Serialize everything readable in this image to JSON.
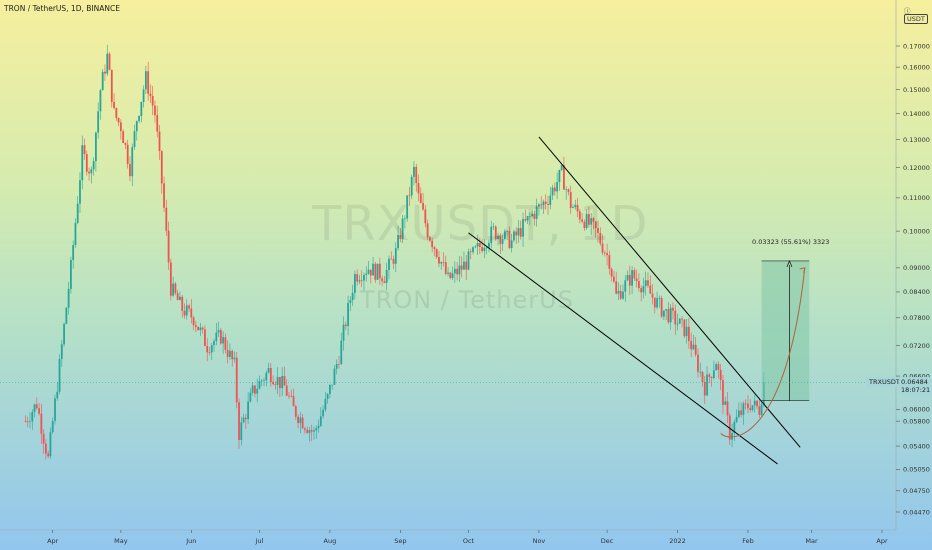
{
  "header": {
    "title": "TRON / TetherUS, 1D, BINANCE"
  },
  "watermark": {
    "symbol": "TRXUSDT, 1D",
    "name": "TRON / TetherUS"
  },
  "currency_label": "USDT",
  "measure_label": "0.03323 (55.61%) 3323",
  "last_price": {
    "symbol": "TRXUSDT",
    "value": "0.06484",
    "countdown": "18:07:21"
  },
  "chart_data": {
    "type": "candlestick",
    "title": "TRON / TetherUS, 1D, BINANCE",
    "y_scale": "log",
    "ylim": [
      0.0435,
      0.186
    ],
    "x_tick_labels": [
      "Apr",
      "May",
      "Jun",
      "Jul",
      "Aug",
      "Sep",
      "Oct",
      "Nov",
      "Dec",
      "2022",
      "Feb",
      "Mar",
      "Apr"
    ],
    "y_tick_labels": [
      "0.17000",
      "0.16000",
      "0.15000",
      "0.14000",
      "0.13000",
      "0.12000",
      "0.11000",
      "0.10000",
      "0.09000",
      "0.08400",
      "0.07800",
      "0.07200",
      "0.06600",
      "0.06000",
      "0.05800",
      "0.05400",
      "0.05050",
      "0.04750",
      "0.04470"
    ],
    "price_path": [
      [
        "2021-03-20",
        0.058
      ],
      [
        "2021-03-25",
        0.061
      ],
      [
        "2021-03-30",
        0.052
      ],
      [
        "2021-04-04",
        0.068
      ],
      [
        "2021-04-09",
        0.09
      ],
      [
        "2021-04-14",
        0.125
      ],
      [
        "2021-04-18",
        0.118
      ],
      [
        "2021-04-22",
        0.15
      ],
      [
        "2021-04-25",
        0.165
      ],
      [
        "2021-04-28",
        0.14
      ],
      [
        "2021-05-01",
        0.135
      ],
      [
        "2021-05-05",
        0.12
      ],
      [
        "2021-05-08",
        0.138
      ],
      [
        "2021-05-12",
        0.155
      ],
      [
        "2021-05-16",
        0.14
      ],
      [
        "2021-05-19",
        0.115
      ],
      [
        "2021-05-23",
        0.085
      ],
      [
        "2021-05-28",
        0.08
      ],
      [
        "2021-06-02",
        0.078
      ],
      [
        "2021-06-08",
        0.072
      ],
      [
        "2021-06-14",
        0.074
      ],
      [
        "2021-06-20",
        0.068
      ],
      [
        "2021-06-22",
        0.056
      ],
      [
        "2021-06-28",
        0.063
      ],
      [
        "2021-07-05",
        0.067
      ],
      [
        "2021-07-12",
        0.064
      ],
      [
        "2021-07-16",
        0.06
      ],
      [
        "2021-07-20",
        0.058
      ],
      [
        "2021-07-25",
        0.056
      ],
      [
        "2021-07-31",
        0.062
      ],
      [
        "2021-08-05",
        0.07
      ],
      [
        "2021-08-12",
        0.088
      ],
      [
        "2021-08-18",
        0.09
      ],
      [
        "2021-08-25",
        0.088
      ],
      [
        "2021-08-30",
        0.094
      ],
      [
        "2021-09-03",
        0.105
      ],
      [
        "2021-09-07",
        0.119
      ],
      [
        "2021-09-09",
        0.11
      ],
      [
        "2021-09-13",
        0.1
      ],
      [
        "2021-09-18",
        0.093
      ],
      [
        "2021-09-22",
        0.087
      ],
      [
        "2021-09-28",
        0.09
      ],
      [
        "2021-10-05",
        0.095
      ],
      [
        "2021-10-12",
        0.1
      ],
      [
        "2021-10-20",
        0.097
      ],
      [
        "2021-10-28",
        0.104
      ],
      [
        "2021-11-05",
        0.11
      ],
      [
        "2021-11-11",
        0.118
      ],
      [
        "2021-11-15",
        0.108
      ],
      [
        "2021-11-20",
        0.104
      ],
      [
        "2021-11-26",
        0.1
      ],
      [
        "2021-12-02",
        0.092
      ],
      [
        "2021-12-05",
        0.083
      ],
      [
        "2021-12-12",
        0.088
      ],
      [
        "2021-12-18",
        0.085
      ],
      [
        "2021-12-25",
        0.08
      ],
      [
        "2021-12-30",
        0.078
      ],
      [
        "2022-01-05",
        0.075
      ],
      [
        "2022-01-10",
        0.068
      ],
      [
        "2022-01-13",
        0.064
      ],
      [
        "2022-01-18",
        0.069
      ],
      [
        "2022-01-21",
        0.062
      ],
      [
        "2022-01-24",
        0.056
      ],
      [
        "2022-01-28",
        0.059
      ],
      [
        "2022-02-02",
        0.061
      ],
      [
        "2022-02-06",
        0.06
      ],
      [
        "2022-02-08",
        0.0648
      ]
    ],
    "annotations": {
      "falling_wedge_upper": [
        [
          "2021-11-01",
          0.131
        ],
        [
          "2022-02-24",
          0.0538
        ]
      ],
      "falling_wedge_lower": [
        [
          "2021-10-01",
          0.0995
        ],
        [
          "2022-02-14",
          0.0513
        ]
      ],
      "rounding_bottom_curve": [
        [
          "2022-01-20",
          0.056
        ],
        [
          "2022-02-06",
          0.057
        ],
        [
          "2022-02-26",
          0.09
        ]
      ],
      "projection_box": {
        "from_date": "2022-02-07",
        "to_date": "2022-02-28",
        "low": 0.0615,
        "high": 0.0918
      }
    }
  },
  "colors": {
    "up": "#26a69a",
    "down": "#ef5350",
    "line": "#000000",
    "curve": "#b0633b",
    "box": "#81c7a8"
  }
}
